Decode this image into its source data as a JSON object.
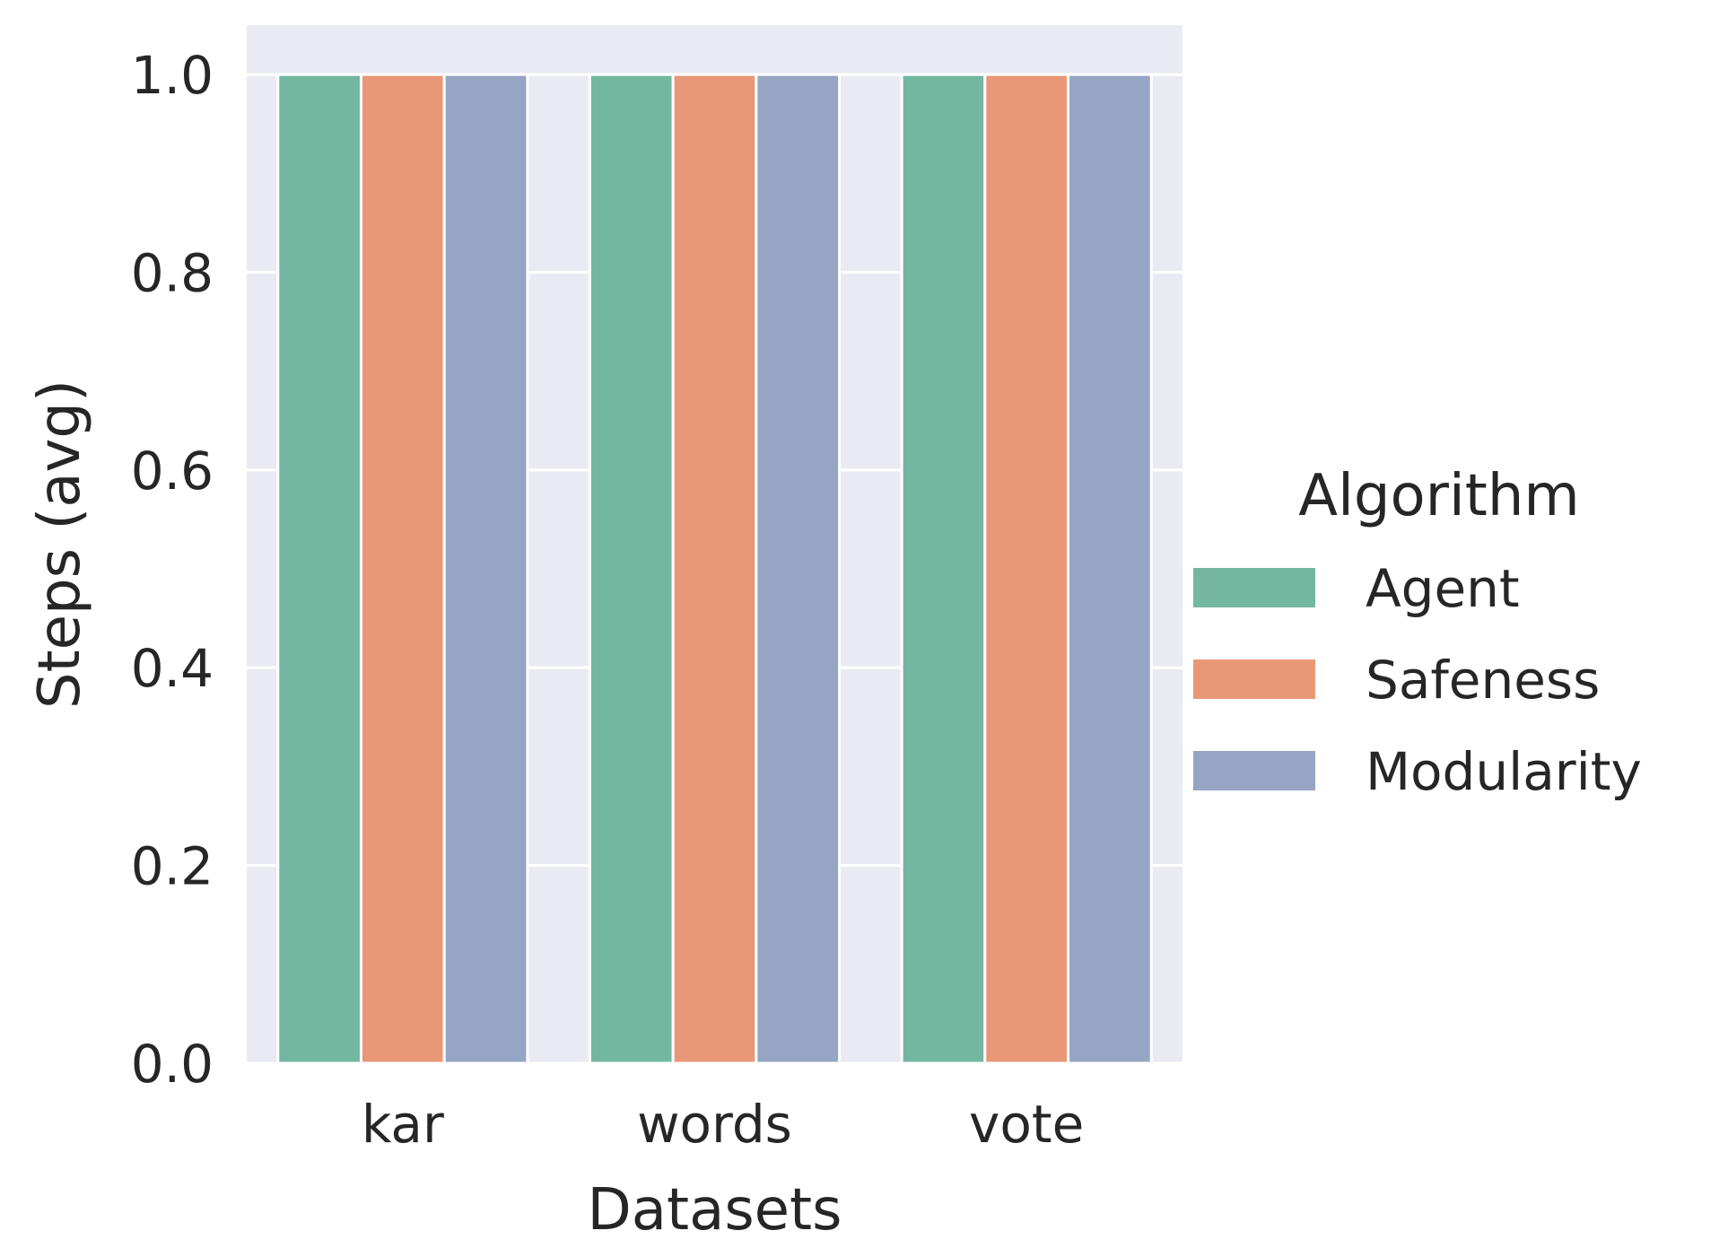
{
  "chart_data": {
    "type": "bar",
    "title": "",
    "xlabel": "Datasets",
    "ylabel": "Steps (avg)",
    "categories": [
      "kar",
      "words",
      "vote"
    ],
    "series": [
      {
        "name": "Agent",
        "color": "#74b7a1",
        "values": [
          1.0,
          1.0,
          1.0
        ]
      },
      {
        "name": "Safeness",
        "color": "#e99877",
        "values": [
          1.0,
          1.0,
          1.0
        ]
      },
      {
        "name": "Modularity",
        "color": "#96a5c3",
        "values": [
          1.0,
          1.0,
          1.0
        ]
      }
    ],
    "ylim": [
      0,
      1.05
    ],
    "yticks": [
      "0.0",
      "0.2",
      "0.4",
      "0.6",
      "0.8",
      "1.0"
    ],
    "grid": true,
    "legend": {
      "title": "Algorithm",
      "placement": "right-outside"
    },
    "background_color": "#eaeaf2",
    "grid_color": "#ffffff"
  }
}
